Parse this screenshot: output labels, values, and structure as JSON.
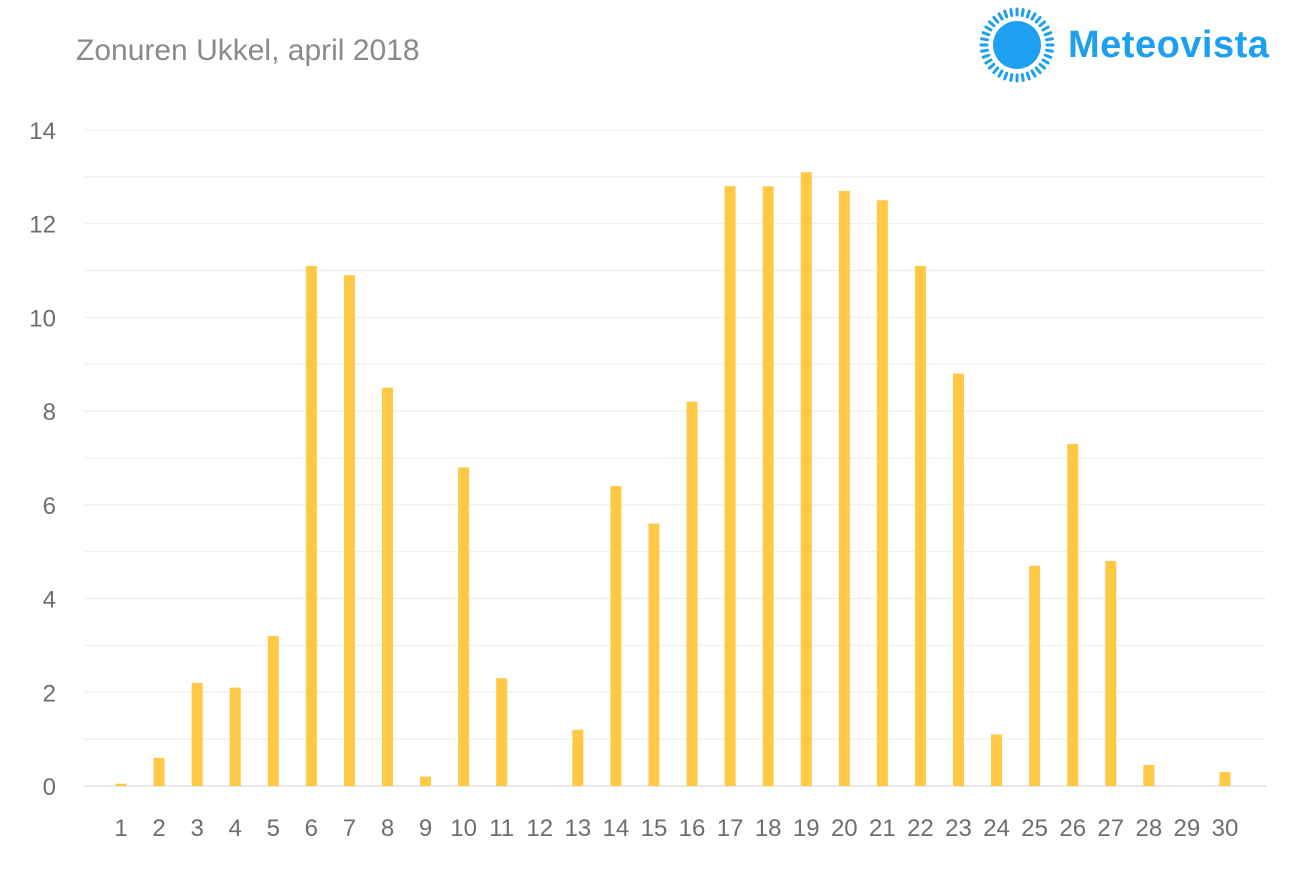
{
  "title": "Zonuren Ukkel, april 2018",
  "brand": {
    "name": "Meteovista",
    "logo_icon": "sun-icon",
    "color": "#1ea0f0"
  },
  "chart_data": {
    "type": "bar",
    "title": "Zonuren Ukkel, april 2018",
    "xlabel": "",
    "ylabel": "",
    "ylim": [
      0,
      14
    ],
    "yticks": [
      0,
      2,
      4,
      6,
      8,
      10,
      12,
      14
    ],
    "grid": true,
    "bar_color": "#ffc845",
    "categories": [
      "1",
      "2",
      "3",
      "4",
      "5",
      "6",
      "7",
      "8",
      "9",
      "10",
      "11",
      "12",
      "13",
      "14",
      "15",
      "16",
      "17",
      "18",
      "19",
      "20",
      "21",
      "22",
      "23",
      "24",
      "25",
      "26",
      "27",
      "28",
      "29",
      "30"
    ],
    "series": [
      {
        "values": [
          0.05,
          0.6,
          2.2,
          2.1,
          3.2,
          11.1,
          10.9,
          8.5,
          0.2,
          6.8,
          2.3,
          0.0,
          1.2,
          6.4,
          5.6,
          8.2,
          12.8,
          12.8,
          13.1,
          12.7,
          12.5,
          11.1,
          8.8,
          1.1,
          4.7,
          7.3,
          4.8,
          0.45,
          0.0,
          0.3
        ]
      }
    ]
  }
}
